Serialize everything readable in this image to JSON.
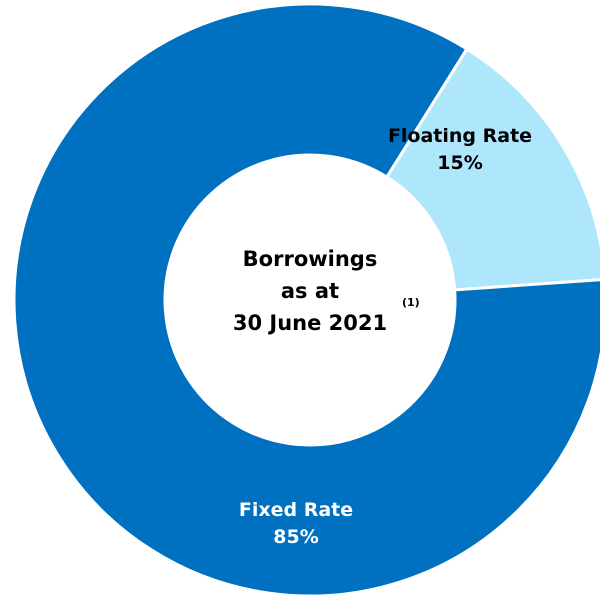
{
  "chart_data": {
    "type": "pie",
    "donut": true,
    "categories": [
      "Fixed Rate",
      "Floating Rate"
    ],
    "values": [
      85,
      15
    ],
    "value_labels": [
      "85%",
      "15%"
    ],
    "colors": [
      "#0070c0",
      "#aee6fc"
    ],
    "label_colors": [
      "#ffffff",
      "#000000"
    ],
    "center_label": {
      "lines": [
        "Borrowings",
        "as at",
        "30 June 2021"
      ],
      "footnote": "(1)"
    },
    "title": "",
    "legend": "none"
  }
}
